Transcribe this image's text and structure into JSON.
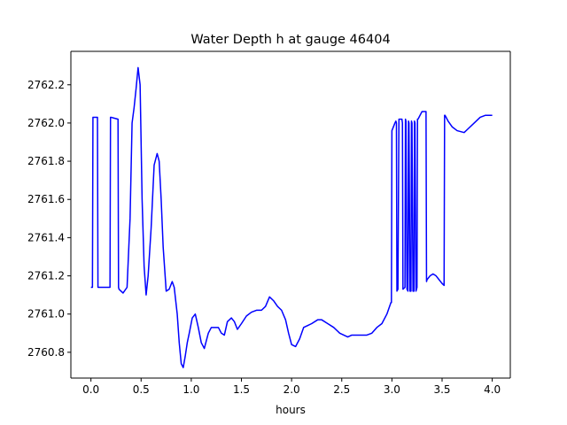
{
  "chart_data": {
    "type": "line",
    "title": "Water Depth h at gauge 46404",
    "xlabel": "hours",
    "ylabel": "",
    "xlim": [
      -0.2,
      4.18
    ],
    "ylim": [
      2760.665,
      2762.375
    ],
    "xticks": [
      0.0,
      0.5,
      1.0,
      1.5,
      2.0,
      2.5,
      3.0,
      3.5,
      4.0
    ],
    "xtick_labels": [
      "0.0",
      "0.5",
      "1.0",
      "1.5",
      "2.0",
      "2.5",
      "3.0",
      "3.5",
      "4.0"
    ],
    "yticks": [
      2760.8,
      2761.0,
      2761.2,
      2761.4,
      2761.6,
      2761.8,
      2762.0,
      2762.2
    ],
    "ytick_labels": [
      "2760.8",
      "2761.0",
      "2761.2",
      "2761.4",
      "2761.6",
      "2761.8",
      "2762.0",
      "2762.2"
    ],
    "grid": false,
    "series": [
      {
        "color": "#0000ff",
        "x": [
          0.0,
          0.015,
          0.02,
          0.025,
          0.06,
          0.065,
          0.07,
          0.19,
          0.195,
          0.2,
          0.27,
          0.275,
          0.28,
          0.32,
          0.36,
          0.39,
          0.41,
          0.43,
          0.45,
          0.47,
          0.49,
          0.51,
          0.53,
          0.55,
          0.57,
          0.6,
          0.63,
          0.66,
          0.68,
          0.7,
          0.72,
          0.75,
          0.78,
          0.81,
          0.83,
          0.86,
          0.88,
          0.9,
          0.92,
          0.94,
          0.96,
          0.98,
          1.01,
          1.04,
          1.07,
          1.1,
          1.13,
          1.17,
          1.2,
          1.23,
          1.27,
          1.3,
          1.33,
          1.36,
          1.4,
          1.43,
          1.46,
          1.5,
          1.55,
          1.6,
          1.65,
          1.7,
          1.74,
          1.78,
          1.82,
          1.86,
          1.9,
          1.94,
          1.97,
          2.0,
          2.04,
          2.08,
          2.12,
          2.16,
          2.2,
          2.26,
          2.3,
          2.36,
          2.42,
          2.48,
          2.52,
          2.56,
          2.6,
          2.65,
          2.7,
          2.75,
          2.8,
          2.85,
          2.9,
          2.95,
          2.99,
          2.995,
          3.0,
          3.03,
          3.04,
          3.045,
          3.05,
          3.06,
          3.07,
          3.09,
          3.1,
          3.105,
          3.11,
          3.13,
          3.135,
          3.14,
          3.15,
          3.16,
          3.165,
          3.17,
          3.18,
          3.19,
          3.195,
          3.2,
          3.21,
          3.22,
          3.225,
          3.23,
          3.24,
          3.25,
          3.255,
          3.26,
          3.3,
          3.34,
          3.345,
          3.35,
          3.38,
          3.41,
          3.44,
          3.47,
          3.5,
          3.52,
          3.525,
          3.53,
          3.56,
          3.6,
          3.65,
          3.72,
          3.76,
          3.82,
          3.88,
          3.93,
          3.97,
          4.0
        ],
        "y": [
          2761.14,
          2761.14,
          2762.03,
          2762.03,
          2762.03,
          2762.03,
          2761.14,
          2761.14,
          2762.03,
          2762.03,
          2762.02,
          2761.14,
          2761.13,
          2761.11,
          2761.14,
          2761.5,
          2762.0,
          2762.08,
          2762.18,
          2762.29,
          2762.2,
          2761.6,
          2761.25,
          2761.1,
          2761.2,
          2761.45,
          2761.78,
          2761.84,
          2761.8,
          2761.6,
          2761.35,
          2761.12,
          2761.13,
          2761.17,
          2761.14,
          2761.0,
          2760.85,
          2760.74,
          2760.72,
          2760.78,
          2760.85,
          2760.9,
          2760.98,
          2761.0,
          2760.93,
          2760.85,
          2760.82,
          2760.9,
          2760.93,
          2760.93,
          2760.93,
          2760.9,
          2760.89,
          2760.96,
          2760.98,
          2760.96,
          2760.92,
          2760.95,
          2760.99,
          2761.01,
          2761.02,
          2761.02,
          2761.04,
          2761.09,
          2761.07,
          2761.04,
          2761.02,
          2760.97,
          2760.9,
          2760.84,
          2760.83,
          2760.87,
          2760.93,
          2760.94,
          2760.95,
          2760.97,
          2760.97,
          2760.95,
          2760.93,
          2760.9,
          2760.89,
          2760.88,
          2760.89,
          2760.89,
          2760.89,
          2760.89,
          2760.9,
          2760.93,
          2760.95,
          2761.0,
          2761.06,
          2761.06,
          2761.96,
          2762.0,
          2762.01,
          2762.0,
          2761.12,
          2761.13,
          2762.02,
          2762.02,
          2762.02,
          2762.0,
          2761.13,
          2761.14,
          2762.02,
          2762.01,
          2761.13,
          2761.12,
          2762.01,
          2762.0,
          2761.12,
          2761.12,
          2762.01,
          2762.0,
          2761.12,
          2761.12,
          2762.01,
          2762.0,
          2761.12,
          2761.14,
          2762.02,
          2762.02,
          2762.06,
          2762.06,
          2761.17,
          2761.18,
          2761.2,
          2761.21,
          2761.2,
          2761.18,
          2761.16,
          2761.15,
          2762.04,
          2762.04,
          2762.01,
          2761.98,
          2761.96,
          2761.95,
          2761.97,
          2762.0,
          2762.03,
          2762.04,
          2762.04,
          2762.04
        ]
      }
    ]
  }
}
